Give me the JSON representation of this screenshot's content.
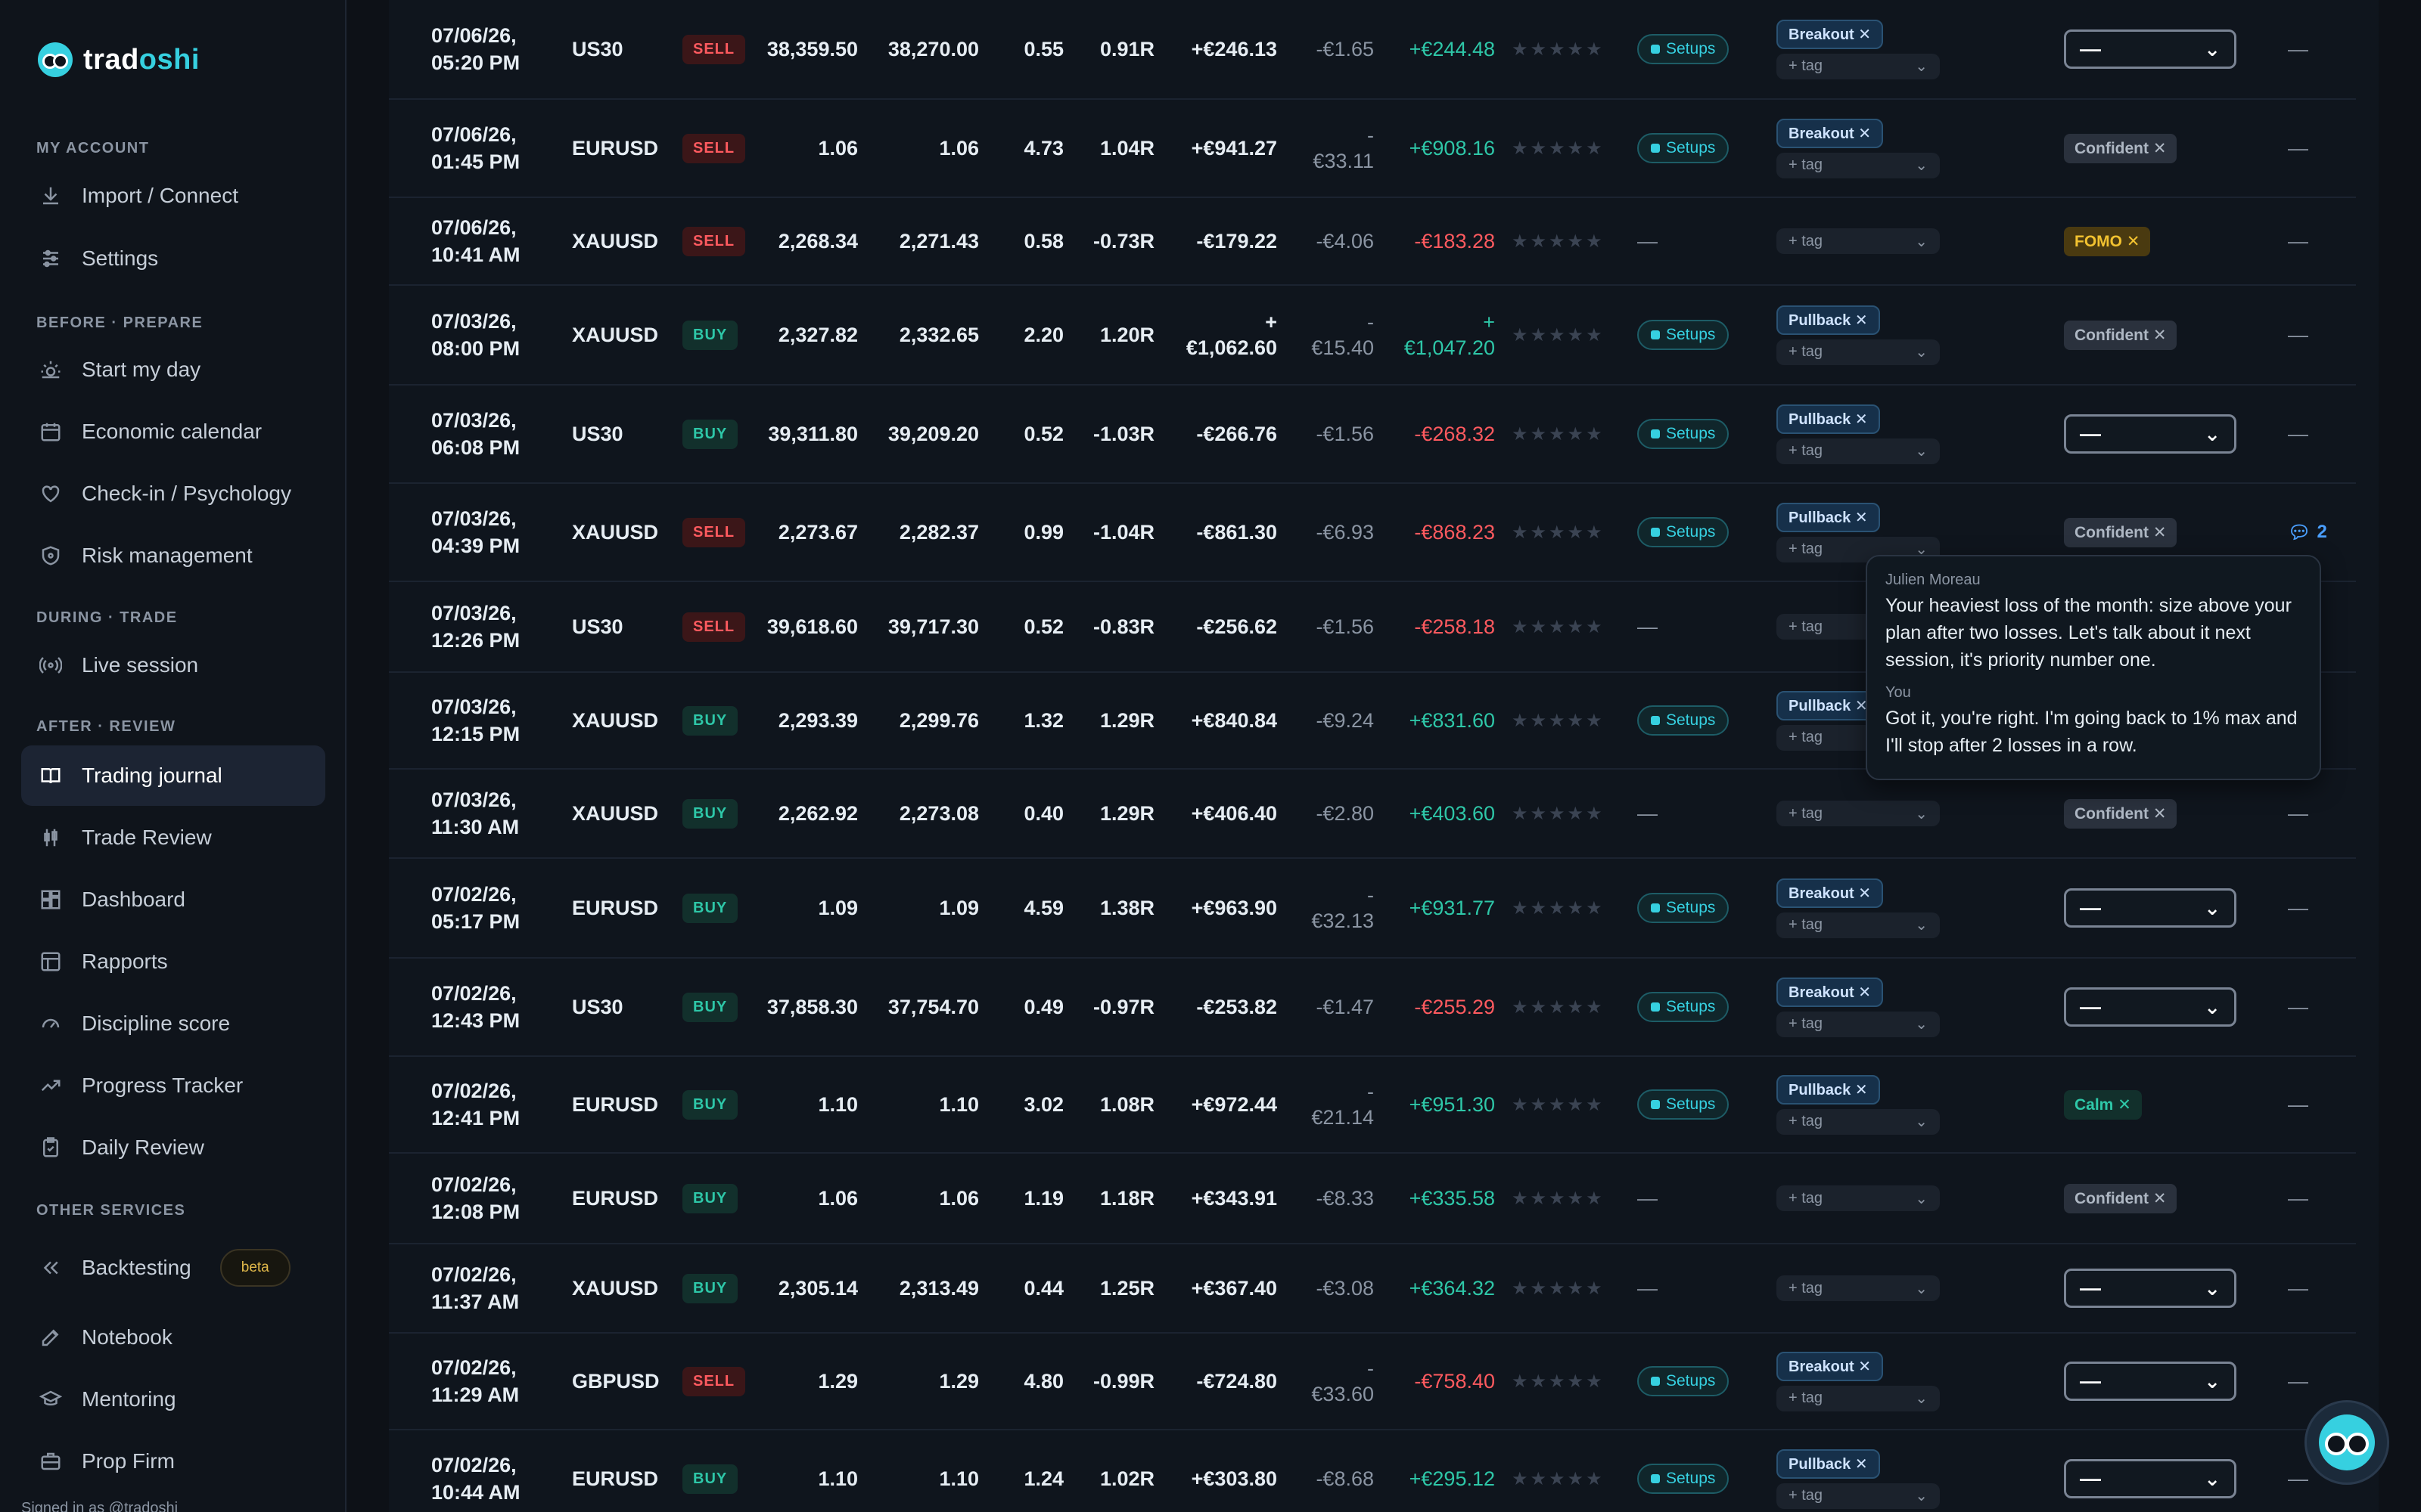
{
  "app": {
    "name_part1": "trad",
    "name_part2": "oshi"
  },
  "sidebar": {
    "sections": [
      {
        "title": "MY ACCOUNT",
        "items": [
          {
            "label": "Import / Connect",
            "icon": "download-icon"
          },
          {
            "label": "Settings",
            "icon": "sliders-icon"
          }
        ]
      },
      {
        "title": "BEFORE · PREPARE",
        "items": [
          {
            "label": "Start my day",
            "icon": "sunrise-icon"
          },
          {
            "label": "Economic calendar",
            "icon": "calendar-icon"
          },
          {
            "label": "Check-in / Psychology",
            "icon": "heart-icon"
          },
          {
            "label": "Risk management",
            "icon": "shield-icon"
          }
        ]
      },
      {
        "title": "DURING · TRADE",
        "items": [
          {
            "label": "Live session",
            "icon": "broadcast-icon"
          }
        ]
      },
      {
        "title": "AFTER · REVIEW",
        "items": [
          {
            "label": "Trading journal",
            "icon": "book-icon",
            "active": true
          },
          {
            "label": "Trade Review",
            "icon": "candles-icon"
          },
          {
            "label": "Dashboard",
            "icon": "dashboard-icon"
          },
          {
            "label": "Rapports",
            "icon": "report-icon"
          },
          {
            "label": "Discipline score",
            "icon": "gauge-icon"
          },
          {
            "label": "Progress Tracker",
            "icon": "trend-icon"
          },
          {
            "label": "Daily Review",
            "icon": "clipboard-icon"
          }
        ]
      },
      {
        "title": "OTHER SERVICES",
        "items": [
          {
            "label": "Backtesting",
            "icon": "rewind-icon",
            "badge": "beta"
          },
          {
            "label": "Notebook",
            "icon": "notebook-icon"
          },
          {
            "label": "Mentoring",
            "icon": "graduation-icon"
          },
          {
            "label": "Prop Firm",
            "icon": "briefcase-icon"
          }
        ]
      }
    ],
    "footer": "Signed in as @tradoshi"
  },
  "trades": [
    {
      "date": "07/06/26,",
      "time": "05:20 PM",
      "symbol": "US30",
      "side": "SELL",
      "entry": "38,359.50",
      "exit": "38,270.00",
      "size": "0.55",
      "r": "0.91R",
      "pnl": "+€246.13",
      "fees": "-€1.65",
      "net": "+€244.48",
      "setup": "Setups",
      "tag": "Breakout",
      "emotion": "select",
      "comments": "—"
    },
    {
      "date": "07/06/26,",
      "time": "01:45 PM",
      "symbol": "EURUSD",
      "side": "SELL",
      "entry": "1.06",
      "exit": "1.06",
      "size": "4.73",
      "r": "1.04R",
      "pnl": "+€941.27",
      "fees": "-€33.11",
      "net": "+€908.16",
      "setup": "Setups",
      "tag": "Breakout",
      "emotion": "Confident",
      "comments": "—"
    },
    {
      "date": "07/06/26,",
      "time": "10:41 AM",
      "symbol": "XAUUSD",
      "side": "SELL",
      "entry": "2,268.34",
      "exit": "2,271.43",
      "size": "0.58",
      "r": "-0.73R",
      "pnl": "-€179.22",
      "fees": "-€4.06",
      "net": "-€183.28",
      "setup": "",
      "tag": "",
      "emotion": "FOMO",
      "comments": "—"
    },
    {
      "date": "07/03/26,",
      "time": "08:00 PM",
      "symbol": "XAUUSD",
      "side": "BUY",
      "entry": "2,327.82",
      "exit": "2,332.65",
      "size": "2.20",
      "r": "1.20R",
      "pnl": "+€1,062.60",
      "fees": "-€15.40",
      "net": "+€1,047.20",
      "setup": "Setups",
      "tag": "Pullback",
      "emotion": "Confident",
      "comments": "—"
    },
    {
      "date": "07/03/26,",
      "time": "06:08 PM",
      "symbol": "US30",
      "side": "BUY",
      "entry": "39,311.80",
      "exit": "39,209.20",
      "size": "0.52",
      "r": "-1.03R",
      "pnl": "-€266.76",
      "fees": "-€1.56",
      "net": "-€268.32",
      "setup": "Setups",
      "tag": "Pullback",
      "emotion": "select",
      "comments": "—"
    },
    {
      "date": "07/03/26,",
      "time": "04:39 PM",
      "symbol": "XAUUSD",
      "side": "SELL",
      "entry": "2,273.67",
      "exit": "2,282.37",
      "size": "0.99",
      "r": "-1.04R",
      "pnl": "-€861.30",
      "fees": "-€6.93",
      "net": "-€868.23",
      "setup": "Setups",
      "tag": "Pullback",
      "emotion": "Confident",
      "comments": "2"
    },
    {
      "date": "07/03/26,",
      "time": "12:26 PM",
      "symbol": "US30",
      "side": "SELL",
      "entry": "39,618.60",
      "exit": "39,717.30",
      "size": "0.52",
      "r": "-0.83R",
      "pnl": "-€256.62",
      "fees": "-€1.56",
      "net": "-€258.18",
      "setup": "",
      "tag": "",
      "emotion": "hidden",
      "comments": ""
    },
    {
      "date": "07/03/26,",
      "time": "12:15 PM",
      "symbol": "XAUUSD",
      "side": "BUY",
      "entry": "2,293.39",
      "exit": "2,299.76",
      "size": "1.32",
      "r": "1.29R",
      "pnl": "+€840.84",
      "fees": "-€9.24",
      "net": "+€831.60",
      "setup": "Setups",
      "tag": "Pullback",
      "emotion": "hidden",
      "comments": ""
    },
    {
      "date": "07/03/26,",
      "time": "11:30 AM",
      "symbol": "XAUUSD",
      "side": "BUY",
      "entry": "2,262.92",
      "exit": "2,273.08",
      "size": "0.40",
      "r": "1.29R",
      "pnl": "+€406.40",
      "fees": "-€2.80",
      "net": "+€403.60",
      "setup": "",
      "tag": "",
      "emotion": "Confident",
      "comments": "—"
    },
    {
      "date": "07/02/26,",
      "time": "05:17 PM",
      "symbol": "EURUSD",
      "side": "BUY",
      "entry": "1.09",
      "exit": "1.09",
      "size": "4.59",
      "r": "1.38R",
      "pnl": "+€963.90",
      "fees": "-€32.13",
      "net": "+€931.77",
      "setup": "Setups",
      "tag": "Breakout",
      "emotion": "select",
      "comments": "—"
    },
    {
      "date": "07/02/26,",
      "time": "12:43 PM",
      "symbol": "US30",
      "side": "BUY",
      "entry": "37,858.30",
      "exit": "37,754.70",
      "size": "0.49",
      "r": "-0.97R",
      "pnl": "-€253.82",
      "fees": "-€1.47",
      "net": "-€255.29",
      "setup": "Setups",
      "tag": "Breakout",
      "emotion": "select",
      "comments": "—"
    },
    {
      "date": "07/02/26,",
      "time": "12:41 PM",
      "symbol": "EURUSD",
      "side": "BUY",
      "entry": "1.10",
      "exit": "1.10",
      "size": "3.02",
      "r": "1.08R",
      "pnl": "+€972.44",
      "fees": "-€21.14",
      "net": "+€951.30",
      "setup": "Setups",
      "tag": "Pullback",
      "emotion": "Calm",
      "comments": "—"
    },
    {
      "date": "07/02/26,",
      "time": "12:08 PM",
      "symbol": "EURUSD",
      "side": "BUY",
      "entry": "1.06",
      "exit": "1.06",
      "size": "1.19",
      "r": "1.18R",
      "pnl": "+€343.91",
      "fees": "-€8.33",
      "net": "+€335.58",
      "setup": "",
      "tag": "",
      "emotion": "Confident",
      "comments": "—"
    },
    {
      "date": "07/02/26,",
      "time": "11:37 AM",
      "symbol": "XAUUSD",
      "side": "BUY",
      "entry": "2,305.14",
      "exit": "2,313.49",
      "size": "0.44",
      "r": "1.25R",
      "pnl": "+€367.40",
      "fees": "-€3.08",
      "net": "+€364.32",
      "setup": "",
      "tag": "",
      "emotion": "select",
      "comments": "—"
    },
    {
      "date": "07/02/26,",
      "time": "11:29 AM",
      "symbol": "GBPUSD",
      "side": "SELL",
      "entry": "1.29",
      "exit": "1.29",
      "size": "4.80",
      "r": "-0.99R",
      "pnl": "-€724.80",
      "fees": "-€33.60",
      "net": "-€758.40",
      "setup": "Setups",
      "tag": "Breakout",
      "emotion": "select",
      "comments": "—"
    },
    {
      "date": "07/02/26,",
      "time": "10:44 AM",
      "symbol": "EURUSD",
      "side": "BUY",
      "entry": "1.10",
      "exit": "1.10",
      "size": "1.24",
      "r": "1.02R",
      "pnl": "+€303.80",
      "fees": "-€8.68",
      "net": "+€295.12",
      "setup": "Setups",
      "tag": "Pullback",
      "emotion": "select",
      "comments": "—"
    }
  ],
  "tag_placeholder": "+ tag",
  "emotion_placeholder": "—",
  "stars": "★★★★★",
  "popover": {
    "messages": [
      {
        "author": "Julien Moreau",
        "text": "Your heaviest loss of the month: size above your plan after two losses. Let's talk about it next session, it's priority number one."
      },
      {
        "author": "You",
        "text": "Got it, you're right. I'm going back to 1% max and I'll stop after 2 losses in a row."
      }
    ]
  },
  "colors": {
    "accent": "#36d0e0",
    "positive": "#2ec7a8",
    "negative": "#ff5a5f"
  }
}
